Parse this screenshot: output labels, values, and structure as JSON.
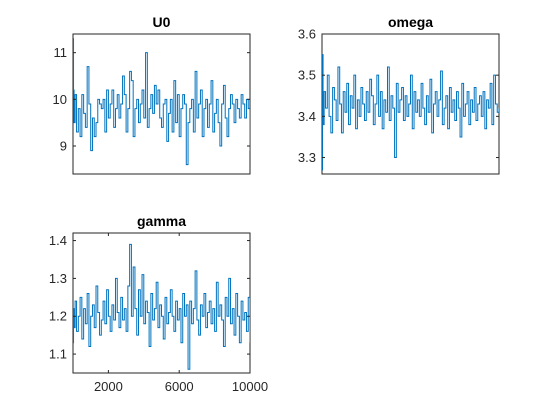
{
  "figure": {
    "background": "#ffffff",
    "axis_color": "#262626",
    "series_color": "#0072BD"
  },
  "chart_data": [
    {
      "type": "line",
      "title": "U0",
      "xlabel": "",
      "ylabel": "",
      "xlim": [
        0,
        10000
      ],
      "ylim": [
        8.4,
        11.4
      ],
      "yticks": [
        9,
        10,
        11
      ],
      "ytick_labels": [
        "9",
        "10",
        "11"
      ],
      "xticks": [],
      "xtick_labels": [],
      "grid": false,
      "series": [
        {
          "color": "#0072BD",
          "x": [
            0,
            30,
            60,
            120,
            200,
            300,
            400,
            500,
            600,
            700,
            800,
            900,
            1000,
            1100,
            1200,
            1300,
            1400,
            1500,
            1600,
            1700,
            1800,
            1900,
            2000,
            2100,
            2200,
            2300,
            2400,
            2500,
            2600,
            2700,
            2800,
            2900,
            3000,
            3100,
            3200,
            3300,
            3400,
            3500,
            3600,
            3700,
            3800,
            3900,
            4000,
            4100,
            4200,
            4300,
            4400,
            4500,
            4600,
            4700,
            4800,
            4900,
            5000,
            5100,
            5200,
            5300,
            5400,
            5500,
            5600,
            5700,
            5800,
            5900,
            6000,
            6100,
            6200,
            6300,
            6400,
            6500,
            6600,
            6700,
            6800,
            6900,
            7000,
            7100,
            7200,
            7300,
            7400,
            7500,
            7600,
            7700,
            7800,
            7900,
            8000,
            8100,
            8200,
            8300,
            8400,
            8500,
            8600,
            8700,
            8800,
            8900,
            9000,
            9100,
            9200,
            9300,
            9400,
            9500,
            9600,
            9700,
            9800,
            9900,
            10000
          ],
          "y": [
            11.3,
            10.2,
            9.5,
            10.1,
            9.3,
            9.8,
            9.2,
            10.1,
            9.7,
            9.4,
            10.7,
            9.9,
            8.9,
            9.6,
            9.2,
            9.5,
            10.0,
            9.9,
            9.8,
            10.0,
            9.3,
            10.2,
            9.6,
            9.9,
            10.2,
            9.4,
            9.8,
            10.1,
            9.6,
            9.9,
            10.5,
            10.1,
            9.3,
            9.8,
            10.6,
            10.4,
            9.2,
            9.8,
            10.0,
            9.5,
            9.9,
            10.2,
            9.6,
            11.0,
            9.4,
            9.8,
            10.1,
            9.7,
            10.3,
            9.9,
            10.2,
            9.6,
            9.4,
            9.9,
            10.0,
            9.1,
            9.7,
            10.0,
            9.3,
            10.4,
            9.5,
            10.1,
            9.2,
            9.8,
            10.1,
            9.9,
            8.6,
            9.5,
            9.8,
            10.0,
            9.3,
            10.6,
            9.6,
            9.9,
            10.2,
            9.2,
            9.8,
            10.0,
            9.4,
            9.9,
            10.4,
            9.3,
            9.7,
            10.0,
            9.5,
            9.0,
            9.9,
            10.3,
            9.6,
            9.2,
            9.8,
            10.1,
            9.9,
            9.5,
            10.0,
            9.8,
            9.6,
            10.1,
            9.9,
            9.6,
            10.0,
            9.8,
            8.9
          ]
        }
      ]
    },
    {
      "type": "line",
      "title": "omega",
      "xlabel": "",
      "ylabel": "",
      "xlim": [
        0,
        10000
      ],
      "ylim": [
        3.26,
        3.6
      ],
      "yticks": [
        3.3,
        3.4,
        3.5,
        3.6
      ],
      "ytick_labels": [
        "3.3",
        "3.4",
        "3.5",
        "3.6"
      ],
      "xticks": [],
      "xtick_labels": [],
      "grid": false,
      "series": [
        {
          "color": "#0072BD",
          "x": [
            0,
            30,
            60,
            120,
            200,
            300,
            400,
            500,
            600,
            700,
            800,
            900,
            1000,
            1100,
            1200,
            1300,
            1400,
            1500,
            1600,
            1700,
            1800,
            1900,
            2000,
            2100,
            2200,
            2300,
            2400,
            2500,
            2600,
            2700,
            2800,
            2900,
            3000,
            3100,
            3200,
            3300,
            3400,
            3500,
            3600,
            3700,
            3800,
            3900,
            4000,
            4100,
            4200,
            4300,
            4400,
            4500,
            4600,
            4700,
            4800,
            4900,
            5000,
            5100,
            5200,
            5300,
            5400,
            5500,
            5600,
            5700,
            5800,
            5900,
            6000,
            6100,
            6200,
            6300,
            6400,
            6500,
            6600,
            6700,
            6800,
            6900,
            7000,
            7100,
            7200,
            7300,
            7400,
            7500,
            7600,
            7700,
            7800,
            7900,
            8000,
            8100,
            8200,
            8300,
            8400,
            8500,
            8600,
            8700,
            8800,
            8900,
            9000,
            9100,
            9200,
            9300,
            9400,
            9500,
            9600,
            9700,
            9800,
            9900,
            10000
          ],
          "y": [
            3.27,
            3.55,
            3.38,
            3.46,
            3.42,
            3.5,
            3.4,
            3.36,
            3.47,
            3.44,
            3.39,
            3.52,
            3.43,
            3.36,
            3.46,
            3.41,
            3.48,
            3.38,
            3.45,
            3.42,
            3.5,
            3.37,
            3.44,
            3.4,
            3.47,
            3.43,
            3.39,
            3.46,
            3.41,
            3.49,
            3.45,
            3.38,
            3.43,
            3.5,
            3.4,
            3.46,
            3.37,
            3.44,
            3.41,
            3.52,
            3.39,
            3.45,
            3.42,
            3.3,
            3.48,
            3.41,
            3.44,
            3.47,
            3.39,
            3.45,
            3.4,
            3.43,
            3.5,
            3.37,
            3.46,
            3.41,
            3.44,
            3.4,
            3.48,
            3.42,
            3.38,
            3.45,
            3.41,
            3.49,
            3.36,
            3.43,
            3.46,
            3.4,
            3.44,
            3.51,
            3.38,
            3.42,
            3.45,
            3.37,
            3.47,
            3.41,
            3.44,
            3.39,
            3.46,
            3.42,
            3.35,
            3.48,
            3.4,
            3.43,
            3.46,
            3.38,
            3.44,
            3.41,
            3.47,
            3.39,
            3.43,
            3.45,
            3.4,
            3.46,
            3.37,
            3.44,
            3.42,
            3.48,
            3.38,
            3.5,
            3.43,
            3.41,
            3.42
          ]
        }
      ]
    },
    {
      "type": "line",
      "title": "gamma",
      "xlabel": "",
      "ylabel": "",
      "xlim": [
        0,
        10000
      ],
      "ylim": [
        1.05,
        1.42
      ],
      "yticks": [
        1.1,
        1.2,
        1.3,
        1.4
      ],
      "ytick_labels": [
        "1.1",
        "1.2",
        "1.3",
        "1.4"
      ],
      "xticks": [
        2000,
        6000,
        10000
      ],
      "xtick_labels": [
        "2000",
        "6000",
        "10000"
      ],
      "grid": false,
      "series": [
        {
          "color": "#0072BD",
          "x": [
            0,
            30,
            60,
            120,
            200,
            300,
            400,
            500,
            600,
            700,
            800,
            900,
            1000,
            1100,
            1200,
            1300,
            1400,
            1500,
            1600,
            1700,
            1800,
            1900,
            2000,
            2100,
            2200,
            2300,
            2400,
            2500,
            2600,
            2700,
            2800,
            2900,
            3000,
            3100,
            3200,
            3300,
            3400,
            3500,
            3600,
            3700,
            3800,
            3900,
            4000,
            4100,
            4200,
            4300,
            4400,
            4500,
            4600,
            4700,
            4800,
            4900,
            5000,
            5100,
            5200,
            5300,
            5400,
            5500,
            5600,
            5700,
            5800,
            5900,
            6000,
            6100,
            6200,
            6300,
            6400,
            6500,
            6600,
            6700,
            6800,
            6900,
            7000,
            7100,
            7200,
            7300,
            7400,
            7500,
            7600,
            7700,
            7800,
            7900,
            8000,
            8100,
            8200,
            8300,
            8400,
            8500,
            8600,
            8700,
            8800,
            8900,
            9000,
            9100,
            9200,
            9300,
            9400,
            9500,
            9600,
            9700,
            9800,
            9900,
            10000
          ],
          "y": [
            1.13,
            1.22,
            1.17,
            1.24,
            1.16,
            1.2,
            1.25,
            1.14,
            1.22,
            1.18,
            1.26,
            1.12,
            1.2,
            1.23,
            1.17,
            1.28,
            1.21,
            1.15,
            1.19,
            1.24,
            1.18,
            1.27,
            1.2,
            1.16,
            1.23,
            1.19,
            1.3,
            1.21,
            1.17,
            1.25,
            1.19,
            1.22,
            1.16,
            1.28,
            1.39,
            1.2,
            1.33,
            1.22,
            1.15,
            1.27,
            1.2,
            1.31,
            1.18,
            1.24,
            1.21,
            1.12,
            1.26,
            1.19,
            1.22,
            1.29,
            1.17,
            1.23,
            1.2,
            1.14,
            1.25,
            1.18,
            1.21,
            1.27,
            1.2,
            1.16,
            1.24,
            1.19,
            1.22,
            1.13,
            1.26,
            1.2,
            1.23,
            1.06,
            1.24,
            1.18,
            1.22,
            1.32,
            1.19,
            1.15,
            1.23,
            1.2,
            1.26,
            1.17,
            1.21,
            1.24,
            1.18,
            1.22,
            1.16,
            1.29,
            1.2,
            1.23,
            1.19,
            1.12,
            1.25,
            1.2,
            1.3,
            1.18,
            1.22,
            1.15,
            1.26,
            1.2,
            1.13,
            1.24,
            1.19,
            1.21,
            1.16,
            1.25,
            1.13
          ]
        }
      ]
    }
  ]
}
